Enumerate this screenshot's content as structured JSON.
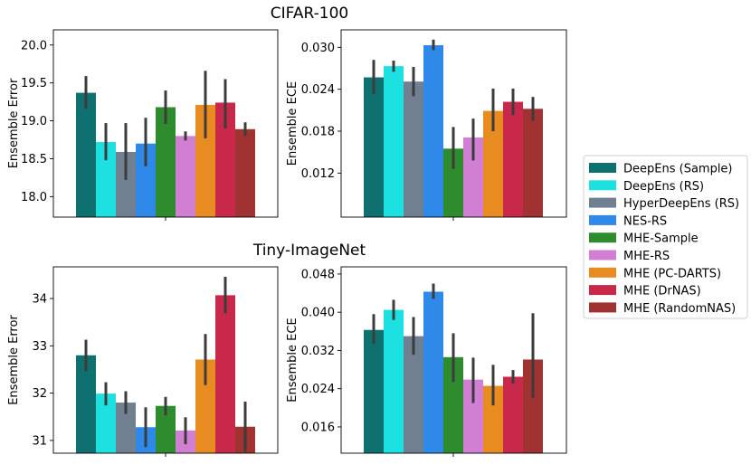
{
  "series_names": [
    "DeepEns (Sample)",
    "DeepEns (RS)",
    "HyperDeepEns (RS)",
    "NES-RS",
    "MHE-Sample",
    "MHE-RS",
    "MHE (PC-DARTS)",
    "MHE (DrNAS)",
    "MHE (RandomNAS)"
  ],
  "colors": [
    "#0f7070",
    "#1de1e1",
    "#708090",
    "#2f89e8",
    "#2e8b2e",
    "#d07fd3",
    "#e88b20",
    "#c8284a",
    "#a03232"
  ],
  "legend": {
    "placement": "right"
  },
  "chart_data": [
    {
      "type": "bar",
      "group_title": "CIFAR-100",
      "title": "CIFAR-100",
      "ylabel": "Ensemble Error",
      "ylim": [
        17.73,
        20.2
      ],
      "yticks": [
        18.0,
        18.5,
        19.0,
        19.5,
        20.0
      ],
      "tick_labels": [
        "18.0",
        "18.5",
        "19.0",
        "19.5",
        "20.0"
      ],
      "values": [
        19.37,
        18.72,
        18.59,
        18.7,
        19.18,
        18.8,
        19.21,
        19.24,
        18.89
      ],
      "err_low": [
        19.16,
        18.48,
        18.22,
        18.4,
        18.96,
        18.74,
        18.77,
        18.9,
        18.8
      ],
      "err_high": [
        19.59,
        18.97,
        18.97,
        19.04,
        19.4,
        18.86,
        19.66,
        19.55,
        18.98
      ]
    },
    {
      "type": "bar",
      "title": "",
      "ylabel": "Ensemble ECE",
      "ylim": [
        0.0057,
        0.0325
      ],
      "yticks": [
        0.012,
        0.018,
        0.024,
        0.03
      ],
      "tick_labels": [
        "0.012",
        "0.018",
        "0.024",
        "0.030"
      ],
      "values": [
        0.0257,
        0.0273,
        0.0251,
        0.0303,
        0.0155,
        0.0171,
        0.0209,
        0.0222,
        0.0212
      ],
      "err_low": [
        0.0233,
        0.0265,
        0.023,
        0.0296,
        0.0126,
        0.0138,
        0.018,
        0.0203,
        0.0195
      ],
      "err_high": [
        0.0282,
        0.0281,
        0.0272,
        0.0311,
        0.0186,
        0.0198,
        0.0241,
        0.0241,
        0.0229
      ]
    },
    {
      "type": "bar",
      "group_title": "Tiny-ImageNet",
      "title": "Tiny-ImageNet",
      "ylabel": "Ensemble Error",
      "ylim": [
        30.73,
        34.67
      ],
      "yticks": [
        31,
        32,
        33,
        34
      ],
      "tick_labels": [
        "31",
        "32",
        "33",
        "34"
      ],
      "values": [
        32.8,
        31.99,
        31.8,
        31.28,
        31.73,
        31.21,
        32.71,
        34.07,
        31.29
      ],
      "err_low": [
        32.46,
        31.74,
        31.56,
        30.86,
        31.53,
        30.92,
        32.17,
        33.69,
        30.76
      ],
      "err_high": [
        33.13,
        32.23,
        32.04,
        31.7,
        31.92,
        31.49,
        33.25,
        34.46,
        31.82
      ]
    },
    {
      "type": "bar",
      "title": "",
      "ylabel": "Ensemble ECE",
      "ylim": [
        0.0105,
        0.0495
      ],
      "yticks": [
        0.016,
        0.024,
        0.032,
        0.04,
        0.048
      ],
      "tick_labels": [
        "0.016",
        "0.024",
        "0.032",
        "0.040",
        "0.048"
      ],
      "values": [
        0.0363,
        0.0405,
        0.035,
        0.0443,
        0.0306,
        0.0259,
        0.0246,
        0.0265,
        0.0301
      ],
      "err_low": [
        0.0334,
        0.0384,
        0.0311,
        0.0428,
        0.0254,
        0.021,
        0.0205,
        0.0251,
        0.0221
      ],
      "err_high": [
        0.0396,
        0.0426,
        0.039,
        0.046,
        0.0356,
        0.0305,
        0.029,
        0.0279,
        0.0398
      ]
    }
  ]
}
